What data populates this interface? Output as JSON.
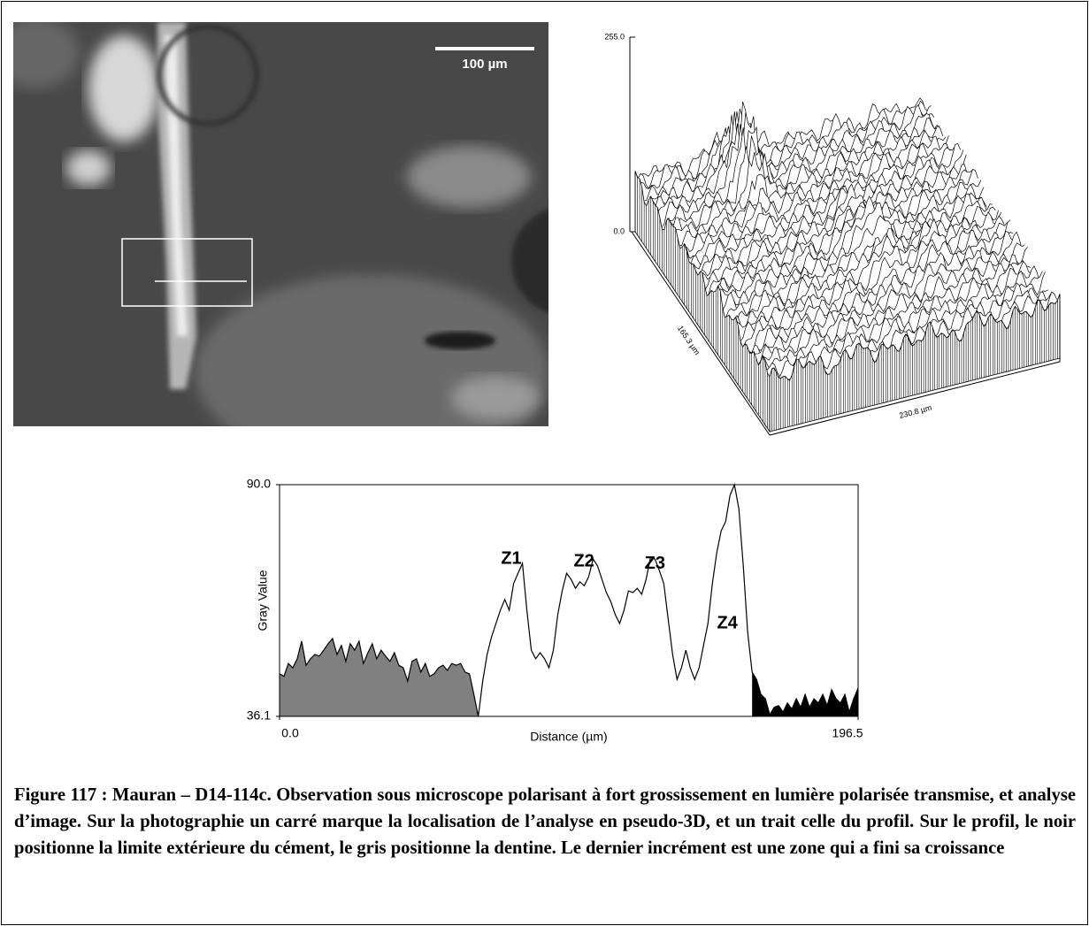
{
  "photo": {
    "scale_bar": "100 µm"
  },
  "chart_data": [
    {
      "type": "surface",
      "zlim": [
        0,
        255
      ],
      "zticks": [
        {
          "value": 0,
          "label": "0.0"
        },
        {
          "value": 255,
          "label": "255.0"
        }
      ],
      "xlabel": "230.8 µm",
      "ylabel": "165.3 µm"
    },
    {
      "type": "line",
      "xlabel": "Distance (µm)",
      "ylabel": "Gray Value",
      "xlim": [
        0,
        196.5
      ],
      "ylim": [
        36.1,
        90
      ],
      "xticks": [
        {
          "value": 0,
          "label": "0.0"
        },
        196.5
      ],
      "yticks": [
        36.1,
        {
          "value": 90,
          "label": "90.0"
        }
      ],
      "x": [
        0,
        1.5,
        3,
        4.5,
        6,
        7.5,
        9,
        10.5,
        12,
        13.5,
        15,
        16.5,
        18,
        19.5,
        21,
        22.5,
        24,
        25.5,
        27,
        28.5,
        30,
        31.5,
        33,
        34.5,
        36,
        37.5,
        39,
        40.5,
        42,
        43.5,
        45,
        46.5,
        48,
        49.5,
        51,
        52.5,
        54,
        55.5,
        57,
        58.5,
        60,
        61.5,
        63,
        64.5,
        66,
        67.5,
        69,
        70.5,
        72,
        73.5,
        75,
        76.5,
        78,
        79.5,
        81,
        82.5,
        84,
        85.5,
        87,
        88.5,
        90,
        91.5,
        93,
        94.5,
        96,
        97.5,
        99,
        100.5,
        102,
        103.5,
        105,
        106.5,
        108,
        109.5,
        111,
        112.5,
        114,
        115.5,
        117,
        118.5,
        120,
        121.5,
        123,
        124.5,
        126,
        127.5,
        129,
        130.5,
        132,
        133.5,
        135,
        136.5,
        138,
        139.5,
        141,
        142.5,
        144,
        145.5,
        147,
        148.5,
        150,
        151.5,
        153,
        154.5,
        156,
        157.5,
        159,
        160.5,
        162,
        163.5,
        165,
        166.5,
        168,
        169.5,
        171,
        172.5,
        174,
        175.5,
        177,
        178.5,
        180,
        181.5,
        183,
        184.5,
        186,
        187.5,
        189,
        190.5,
        192,
        193.5,
        195,
        196.5
      ],
      "series": [
        {
          "color": "#000000",
          "values": [
            46.0,
            45.4,
            48.4,
            47.4,
            49.5,
            53.6,
            48.0,
            49.5,
            50.5,
            50.1,
            51.5,
            53.0,
            54.2,
            50.5,
            52.6,
            48.9,
            53.0,
            51.5,
            53.6,
            48.4,
            50.9,
            53.0,
            49.5,
            51.5,
            50.1,
            48.9,
            50.9,
            48.0,
            47.4,
            44.3,
            48.9,
            49.5,
            46.4,
            48.4,
            45.4,
            46.0,
            47.4,
            48.0,
            46.8,
            48.4,
            48.0,
            48.4,
            46.4,
            46.0,
            41.2,
            36.1,
            44.3,
            50.5,
            54.6,
            57.7,
            60.8,
            63.3,
            60.8,
            67.0,
            69.4,
            71.7,
            60.8,
            51.5,
            49.5,
            50.9,
            49.5,
            47.4,
            51.5,
            59.8,
            65.3,
            69.4,
            68.0,
            65.9,
            67.4,
            66.5,
            68.6,
            72.7,
            71.1,
            68.0,
            64.9,
            62.8,
            59.8,
            57.7,
            60.8,
            65.3,
            64.9,
            65.9,
            64.5,
            68.0,
            73.1,
            72.7,
            70.0,
            67.0,
            58.7,
            50.5,
            44.7,
            47.4,
            51.5,
            47.4,
            44.7,
            47.4,
            52.6,
            57.7,
            67.0,
            74.2,
            79.3,
            81.4,
            87.5,
            90.0,
            84.4,
            71.1,
            55.6,
            46.4,
            44.7,
            41.2,
            40.2,
            36.5,
            38.2,
            38.6,
            37.1,
            39.2,
            37.8,
            40.2,
            38.2,
            41.2,
            38.2,
            40.2,
            39.2,
            41.2,
            38.6,
            42.3,
            40.2,
            39.2,
            41.2,
            37.1,
            40.2,
            42.7
          ]
        }
      ],
      "shaded": [
        {
          "xlim": [
            0,
            67.5
          ],
          "color": "#808080"
        },
        {
          "xlim": [
            160.5,
            196.5
          ],
          "color": "#000000"
        }
      ],
      "annotations": [
        {
          "text": "Z1",
          "x": 78.7,
          "y": 72.7
        },
        {
          "text": "Z2",
          "x": 103.4,
          "y": 72.1
        },
        {
          "text": "Z3",
          "x": 127.5,
          "y": 71.5
        },
        {
          "text": "Z4",
          "x": 152.1,
          "y": 57.7
        }
      ]
    }
  ],
  "caption": "Figure 117 : Mauran – D14-114c. Observation sous microscope polarisant à fort grossissement en lumière polarisée transmise, et analyse d’image. Sur la photographie un carré marque la localisation de l’analyse en pseudo-3D, et un trait celle du profil. Sur le profil, le noir positionne la limite extérieure du cément, le gris positionne la dentine. Le dernier incrément est une zone qui a fini sa croissance"
}
